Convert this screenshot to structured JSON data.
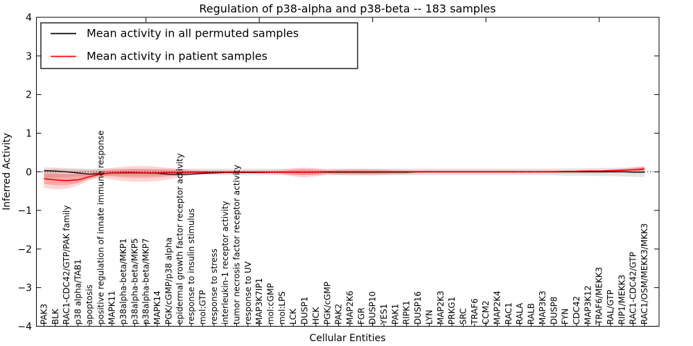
{
  "figure": {
    "title": "Regulation of p38-alpha and p38-beta -- 183 samples",
    "xlabel": "Cellular Entities",
    "ylabel": "Inferred Activity"
  },
  "legend": {
    "position": "upper left",
    "entries": [
      {
        "label": "Mean activity in all permuted samples",
        "color": "#000000"
      },
      {
        "label": "Mean activity in patient samples",
        "color": "#ff0000"
      }
    ]
  },
  "colors": {
    "background": "#ffffff",
    "axis": "#000000",
    "permuted_line": "#000000",
    "patient_line": "#ff0000",
    "permuted_band": "#000000",
    "patient_band": "#ff0000"
  },
  "chart_data": {
    "type": "line",
    "title": "Regulation of p38-alpha and p38-beta -- 183 samples",
    "xlabel": "Cellular Entities",
    "ylabel": "Inferred Activity",
    "ylim": [
      -4,
      4
    ],
    "yticks": [
      -4,
      -3,
      -2,
      -1,
      0,
      1,
      2,
      3,
      4
    ],
    "ytick_labels": [
      "−4",
      "−3",
      "−2",
      "−1",
      "0",
      "1",
      "2",
      "3",
      "4"
    ],
    "x_major_tick_every": 10,
    "grid": false,
    "legend_position": "upper left",
    "zero_line": {
      "y": 0,
      "style": "dotted",
      "color": "#000000"
    },
    "categories": [
      "PAK3",
      "BLK",
      "RAC1-CDC42/GTP/PAK family",
      "p38 alpha/TAB1",
      "apoptosis",
      "positive regulation of innate immune response",
      "MAPK11",
      "p38alpha-beta/MKP1",
      "p38alpha-beta/MKP5",
      "p38alpha-beta/MKP7",
      "MAPK14",
      "PGK/cGMP/p38 alpha",
      "epidermal growth factor receptor activity",
      "response to insulin stimulus",
      "mol:GTP",
      "response to stress",
      "interleukin-1 receptor activity",
      "tumor necrosis factor receptor activity",
      "response to UV",
      "MAP3K7IP1",
      "mol:cGMP",
      "mol:LPS",
      "LCK",
      "DUSP1",
      "HCK",
      "PGK/cGMP",
      "PAK2",
      "MAP2K6",
      "FGR",
      "DUSP10",
      "YES1",
      "PAK1",
      "RIPK1",
      "DUSP16",
      "LYN",
      "MAP2K3",
      "PRKG1",
      "SRC",
      "TRAF6",
      "CCM2",
      "MAP2K4",
      "RAC1",
      "RALA",
      "RALB",
      "MAP3K3",
      "DUSP8",
      "FYN",
      "CDC42",
      "MAP3K12",
      "TRAF6/MEKK3",
      "RAL/GTP",
      "RIP1/MEKK3",
      "RAC1-CDC42/GTP",
      "RAC1/OSM/MEKK3/MKK3"
    ],
    "series": [
      {
        "name": "Mean activity in all permuted samples",
        "color": "#000000",
        "values": [
          0.03,
          0.02,
          0.0,
          -0.03,
          -0.06,
          -0.05,
          -0.03,
          -0.02,
          -0.02,
          -0.03,
          -0.04,
          -0.06,
          -0.07,
          -0.06,
          -0.04,
          -0.03,
          -0.02,
          -0.02,
          -0.02,
          -0.02,
          -0.01,
          -0.01,
          -0.01,
          -0.01,
          -0.01,
          -0.01,
          -0.01,
          -0.01,
          -0.01,
          -0.01,
          -0.01,
          -0.01,
          -0.01,
          0.0,
          0.0,
          0.0,
          0.0,
          0.0,
          0.0,
          0.0,
          0.0,
          0.0,
          0.0,
          0.0,
          0.0,
          0.0,
          0.0,
          0.0,
          0.0,
          0.0,
          0.0,
          0.0,
          -0.01,
          -0.01
        ]
      },
      {
        "name": "Mean activity in patient samples",
        "color": "#ff0000",
        "values": [
          -0.18,
          -0.21,
          -0.23,
          -0.21,
          -0.13,
          -0.06,
          -0.03,
          -0.03,
          -0.03,
          -0.03,
          -0.03,
          -0.02,
          -0.02,
          -0.01,
          -0.01,
          -0.01,
          -0.01,
          -0.01,
          -0.01,
          -0.01,
          -0.01,
          -0.01,
          -0.01,
          -0.01,
          -0.01,
          0.0,
          0.0,
          0.0,
          0.0,
          0.0,
          0.0,
          0.0,
          0.0,
          0.0,
          0.0,
          0.0,
          0.0,
          0.0,
          0.0,
          0.0,
          0.0,
          0.0,
          0.0,
          0.0,
          0.0,
          0.0,
          0.01,
          0.01,
          0.02,
          0.02,
          0.03,
          0.04,
          0.05,
          0.07
        ]
      }
    ],
    "bands": [
      {
        "name": "permuted samples range",
        "color": "#000000",
        "opacity": 0.1,
        "lo": [
          -0.16,
          -0.15,
          -0.13,
          -0.12,
          -0.11,
          -0.1,
          -0.1,
          -0.1,
          -0.1,
          -0.1,
          -0.1,
          -0.1,
          -0.1,
          -0.09,
          -0.09,
          -0.09,
          -0.09,
          -0.09,
          -0.09,
          -0.09,
          -0.09,
          -0.09,
          -0.09,
          -0.09,
          -0.09,
          -0.09,
          -0.09,
          -0.09,
          -0.09,
          -0.09,
          -0.09,
          -0.09,
          -0.09,
          -0.09,
          -0.09,
          -0.09,
          -0.09,
          -0.09,
          -0.09,
          -0.09,
          -0.09,
          -0.09,
          -0.09,
          -0.09,
          -0.09,
          -0.09,
          -0.1,
          -0.1,
          -0.1,
          -0.11,
          -0.11,
          -0.12,
          -0.13,
          -0.14
        ],
        "hi": [
          0.12,
          0.11,
          0.1,
          0.09,
          0.08,
          0.08,
          0.08,
          0.08,
          0.08,
          0.08,
          0.08,
          0.08,
          0.08,
          0.08,
          0.08,
          0.08,
          0.08,
          0.08,
          0.08,
          0.08,
          0.08,
          0.08,
          0.08,
          0.08,
          0.08,
          0.08,
          0.08,
          0.08,
          0.08,
          0.08,
          0.08,
          0.08,
          0.08,
          0.08,
          0.08,
          0.08,
          0.08,
          0.08,
          0.08,
          0.08,
          0.08,
          0.08,
          0.08,
          0.08,
          0.08,
          0.08,
          0.09,
          0.09,
          0.09,
          0.1,
          0.1,
          0.11,
          0.12,
          0.13
        ]
      },
      {
        "name": "patient samples range",
        "color": "#ff0000",
        "opacity": 0.16,
        "layered": true,
        "lo": [
          -0.42,
          -0.46,
          -0.44,
          -0.36,
          -0.22,
          -0.16,
          -0.2,
          -0.24,
          -0.26,
          -0.26,
          -0.24,
          -0.2,
          -0.14,
          -0.08,
          -0.06,
          -0.05,
          -0.05,
          -0.05,
          -0.05,
          -0.05,
          -0.05,
          -0.06,
          -0.12,
          -0.15,
          -0.12,
          -0.07,
          -0.08,
          -0.09,
          -0.09,
          -0.09,
          -0.08,
          -0.07,
          -0.06,
          -0.05,
          -0.04,
          -0.04,
          -0.04,
          -0.04,
          -0.04,
          -0.04,
          -0.04,
          -0.04,
          -0.04,
          -0.04,
          -0.04,
          -0.04,
          -0.04,
          -0.04,
          -0.04,
          -0.04,
          -0.03,
          -0.02,
          -0.01,
          0.0
        ],
        "hi": [
          0.06,
          0.08,
          0.07,
          0.06,
          0.05,
          0.07,
          0.1,
          0.13,
          0.15,
          0.15,
          0.13,
          0.1,
          0.08,
          0.05,
          0.04,
          0.04,
          0.04,
          0.04,
          0.04,
          0.04,
          0.04,
          0.05,
          0.09,
          0.11,
          0.09,
          0.05,
          0.06,
          0.07,
          0.07,
          0.07,
          0.06,
          0.05,
          0.04,
          0.04,
          0.04,
          0.04,
          0.04,
          0.04,
          0.04,
          0.04,
          0.04,
          0.04,
          0.04,
          0.04,
          0.04,
          0.04,
          0.04,
          0.04,
          0.05,
          0.05,
          0.06,
          0.08,
          0.11,
          0.15
        ]
      }
    ]
  }
}
